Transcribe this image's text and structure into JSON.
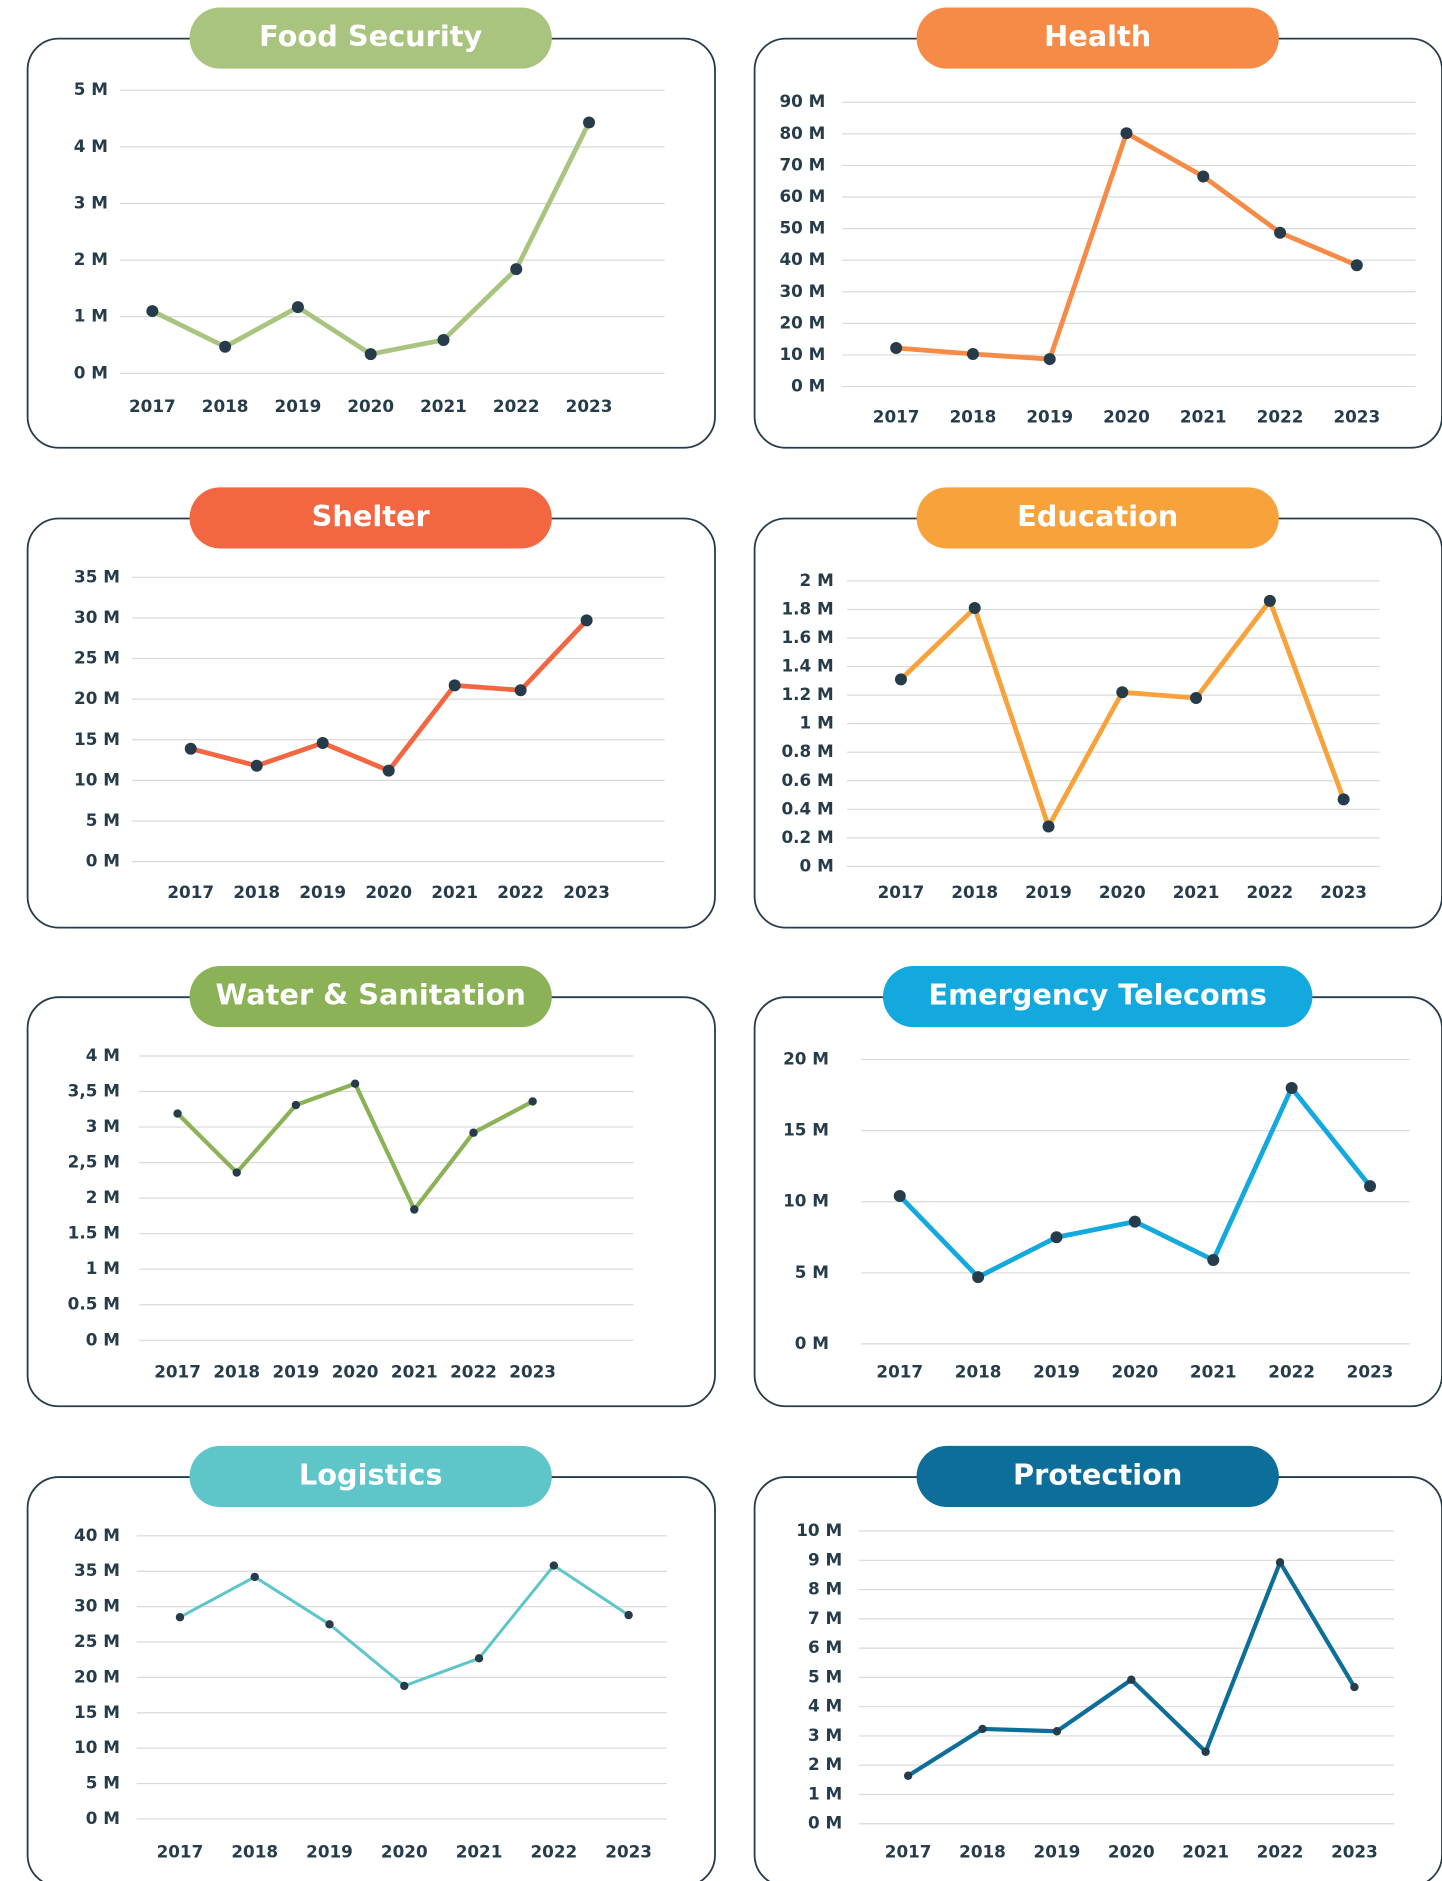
{
  "chart_data": [
    {
      "type": "line",
      "title": "Food Security",
      "color": "#a9c47f",
      "categories": [
        "2017",
        "2018",
        "2019",
        "2020",
        "2021",
        "2022",
        "2023"
      ],
      "values": [
        1100000,
        470000,
        1170000,
        340000,
        590000,
        1840000,
        4430000
      ],
      "ylim": [
        0,
        5000000
      ],
      "yticks": [
        {
          "value": 0,
          "label": "0 M"
        },
        {
          "value": 1000000,
          "label": "1 M"
        },
        {
          "value": 2000000,
          "label": "2 M"
        },
        {
          "value": 3000000,
          "label": "3 M"
        },
        {
          "value": 4000000,
          "label": "4 M"
        },
        {
          "value": 5000000,
          "label": "5 M"
        }
      ],
      "grid": true
    },
    {
      "type": "line",
      "title": "Health",
      "color": "#f68b48",
      "categories": [
        "2017",
        "2018",
        "2019",
        "2020",
        "2021",
        "2022",
        "2023"
      ],
      "values": [
        12200000,
        10300000,
        8700000,
        80200000,
        66500000,
        48700000,
        38400000
      ],
      "ylim": [
        0,
        90000000
      ],
      "yticks": [
        {
          "value": 0,
          "label": "0 M"
        },
        {
          "value": 10000000,
          "label": "10 M"
        },
        {
          "value": 20000000,
          "label": "20 M"
        },
        {
          "value": 30000000,
          "label": "30 M"
        },
        {
          "value": 40000000,
          "label": "40 M"
        },
        {
          "value": 50000000,
          "label": "50 M"
        },
        {
          "value": 60000000,
          "label": "60 M"
        },
        {
          "value": 70000000,
          "label": "70 M"
        },
        {
          "value": 80000000,
          "label": "80 M"
        },
        {
          "value": 90000000,
          "label": "90 M"
        }
      ],
      "grid": true
    },
    {
      "type": "line",
      "title": "Shelter",
      "color": "#f26641",
      "categories": [
        "2017",
        "2018",
        "2019",
        "2020",
        "2021",
        "2022",
        "2023"
      ],
      "values": [
        13900000,
        11800000,
        14600000,
        11200000,
        21700000,
        21100000,
        29700000
      ],
      "ylim": [
        0,
        35000000
      ],
      "yticks": [
        {
          "value": 0,
          "label": "0 M"
        },
        {
          "value": 5000000,
          "label": "5 M"
        },
        {
          "value": 10000000,
          "label": "10 M"
        },
        {
          "value": 15000000,
          "label": "15 M"
        },
        {
          "value": 20000000,
          "label": "20 M"
        },
        {
          "value": 25000000,
          "label": "25 M"
        },
        {
          "value": 30000000,
          "label": "30 M"
        },
        {
          "value": 35000000,
          "label": "35 M"
        }
      ],
      "grid": true
    },
    {
      "type": "line",
      "title": "Education",
      "color": "#f7a23b",
      "categories": [
        "2017",
        "2018",
        "2019",
        "2020",
        "2021",
        "2022",
        "2023"
      ],
      "values": [
        1310000,
        1810000,
        280000,
        1220000,
        1180000,
        1860000,
        470000
      ],
      "ylim": [
        0,
        2000000
      ],
      "yticks": [
        {
          "value": 0,
          "label": "0 M"
        },
        {
          "value": 200000,
          "label": "0.2 M"
        },
        {
          "value": 400000,
          "label": "0.4 M"
        },
        {
          "value": 600000,
          "label": "0.6 M"
        },
        {
          "value": 800000,
          "label": "0.8 M"
        },
        {
          "value": 1000000,
          "label": "1 M"
        },
        {
          "value": 1200000,
          "label": "1.2 M"
        },
        {
          "value": 1400000,
          "label": "1.4 M"
        },
        {
          "value": 1600000,
          "label": "1.6 M"
        },
        {
          "value": 1800000,
          "label": "1.8 M"
        },
        {
          "value": 2000000,
          "label": "2 M"
        }
      ],
      "grid": true
    },
    {
      "type": "line",
      "title": "Water & Sanitation",
      "color": "#8bb257",
      "categories": [
        "2017",
        "2018",
        "2019",
        "2020",
        "2021",
        "2022",
        "2023"
      ],
      "values": [
        3190000,
        2360000,
        3310000,
        3610000,
        1840000,
        2920000,
        3360000
      ],
      "ylim": [
        0,
        4000000
      ],
      "yticks": [
        {
          "value": 0,
          "label": "0 M"
        },
        {
          "value": 500000,
          "label": "0.5 M"
        },
        {
          "value": 1000000,
          "label": "1 M"
        },
        {
          "value": 1500000,
          "label": "1.5 M"
        },
        {
          "value": 2000000,
          "label": "2 M"
        },
        {
          "value": 2500000,
          "label": "2,5 M"
        },
        {
          "value": 3000000,
          "label": "3 M"
        },
        {
          "value": 3500000,
          "label": "3,5 M"
        },
        {
          "value": 4000000,
          "label": "4 M"
        }
      ],
      "grid": true
    },
    {
      "type": "line",
      "title": "Emergency Telecoms",
      "color": "#13a9df",
      "categories": [
        "2017",
        "2018",
        "2019",
        "2020",
        "2021",
        "2022",
        "2023"
      ],
      "values": [
        10400000,
        4700000,
        7500000,
        8600000,
        5900000,
        18000000,
        11100000
      ],
      "ylim": [
        0,
        20000000
      ],
      "yticks": [
        {
          "value": 0,
          "label": "0 M"
        },
        {
          "value": 5000000,
          "label": "5 M"
        },
        {
          "value": 10000000,
          "label": "10 M"
        },
        {
          "value": 15000000,
          "label": "15 M"
        },
        {
          "value": 20000000,
          "label": "20 M"
        }
      ],
      "grid": true
    },
    {
      "type": "line",
      "title": "Logistics",
      "color": "#5ec5c9",
      "categories": [
        "2017",
        "2018",
        "2019",
        "2020",
        "2021",
        "2022",
        "2023"
      ],
      "values": [
        28500000,
        34200000,
        27500000,
        18800000,
        22700000,
        35800000,
        28800000
      ],
      "ylim": [
        0,
        40000000
      ],
      "yticks": [
        {
          "value": 0,
          "label": "0 M"
        },
        {
          "value": 5000000,
          "label": "5 M"
        },
        {
          "value": 10000000,
          "label": "10 M"
        },
        {
          "value": 15000000,
          "label": "15 M"
        },
        {
          "value": 20000000,
          "label": "20 M"
        },
        {
          "value": 25000000,
          "label": "25 M"
        },
        {
          "value": 30000000,
          "label": "30 M"
        },
        {
          "value": 35000000,
          "label": "35 M"
        },
        {
          "value": 40000000,
          "label": "40 M"
        }
      ],
      "grid": true
    },
    {
      "type": "line",
      "title": "Protection",
      "color": "#0c6e99",
      "categories": [
        "2017",
        "2018",
        "2019",
        "2020",
        "2021",
        "2022",
        "2023"
      ],
      "values": [
        1640000,
        3240000,
        3160000,
        4920000,
        2460000,
        8930000,
        4670000
      ],
      "ylim": [
        0,
        10000000
      ],
      "yticks": [
        {
          "value": 0,
          "label": "0 M"
        },
        {
          "value": 1000000,
          "label": "1 M"
        },
        {
          "value": 2000000,
          "label": "2 M"
        },
        {
          "value": 3000000,
          "label": "3 M"
        },
        {
          "value": 4000000,
          "label": "4 M"
        },
        {
          "value": 5000000,
          "label": "5 M"
        },
        {
          "value": 6000000,
          "label": "6 M"
        },
        {
          "value": 7000000,
          "label": "7 M"
        },
        {
          "value": 8000000,
          "label": "8 M"
        },
        {
          "value": 9000000,
          "label": "9 M"
        },
        {
          "value": 10000000,
          "label": "10 M"
        }
      ],
      "grid": true
    }
  ]
}
